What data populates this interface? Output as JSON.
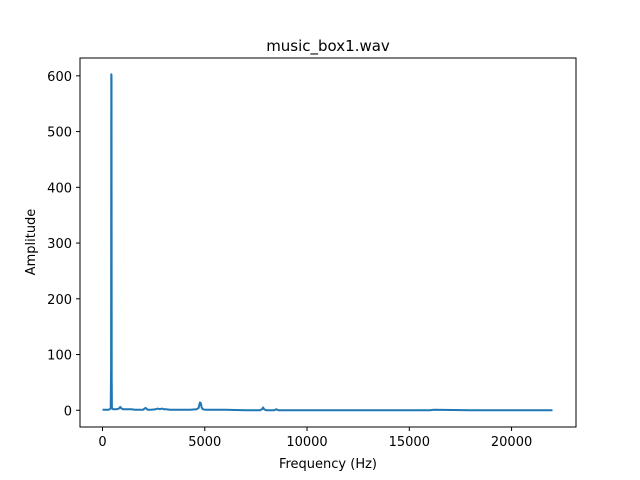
{
  "chart_data": {
    "type": "line",
    "title": "music_box1.wav",
    "xlabel": "Frequency (Hz)",
    "ylabel": "Amplitude",
    "xlim": [
      -1100,
      23150
    ],
    "ylim": [
      -30,
      632
    ],
    "xticks": [
      0,
      5000,
      10000,
      15000,
      20000
    ],
    "yticks": [
      0,
      100,
      200,
      300,
      400,
      500,
      600
    ],
    "grid": false,
    "legend": "none",
    "series": [
      {
        "color": "#1f77b4",
        "x": [
          0,
          300,
          400,
          420,
          432,
          440,
          448,
          460,
          480,
          520,
          600,
          700,
          800,
          870,
          900,
          950,
          1000,
          1200,
          1400,
          1600,
          1800,
          2000,
          2050,
          2100,
          2150,
          2200,
          2400,
          2600,
          2700,
          2800,
          2900,
          3000,
          3100,
          3300,
          3500,
          3700,
          4000,
          4300,
          4600,
          4700,
          4760,
          4800,
          4850,
          4900,
          5000,
          5300,
          6000,
          7000,
          7700,
          7800,
          7850,
          7900,
          8000,
          8400,
          8500,
          8600,
          9000,
          10000,
          12000,
          14000,
          16000,
          16200,
          18000,
          20000,
          22000
        ],
        "y": [
          1,
          1,
          3,
          80,
          603,
          600,
          60,
          5,
          3,
          2,
          2,
          2,
          3,
          6,
          4,
          3,
          2,
          2,
          2,
          1,
          1,
          1,
          3,
          4,
          3,
          1,
          1,
          2,
          3,
          2,
          3,
          2,
          2,
          1,
          1,
          1,
          1,
          1,
          2,
          4,
          14,
          13,
          5,
          2,
          1,
          1,
          1,
          0,
          0,
          2,
          5,
          2,
          0,
          0,
          2,
          0,
          0,
          0,
          0,
          0,
          0,
          1,
          0,
          0,
          0
        ]
      }
    ]
  }
}
